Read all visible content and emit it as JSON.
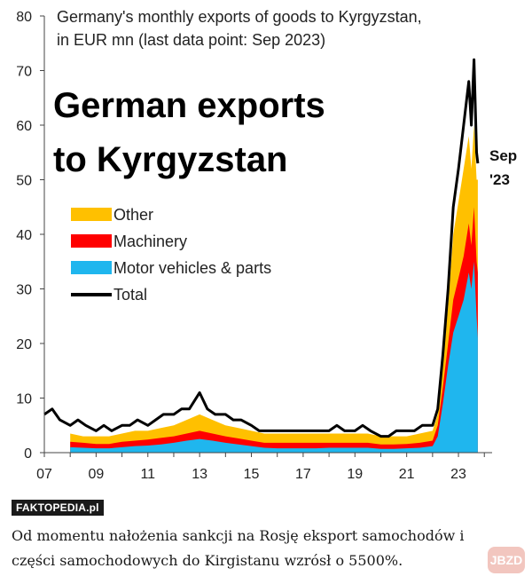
{
  "chart_data": {
    "type": "area",
    "subtitle_line1": "Germany's monthly exports of goods to Kyrgyzstan,",
    "subtitle_line2": "in EUR mn (last data point: Sep 2023)",
    "title_line1": "German exports",
    "title_line2": "to Kyrgyzstan",
    "annotation_line1": "Sep",
    "annotation_line2": "'23",
    "xlabel": "",
    "ylabel": "",
    "ylim": [
      0,
      80
    ],
    "xlim": [
      2007,
      2024.3
    ],
    "y_ticks": [
      "0",
      "10",
      "20",
      "30",
      "40",
      "50",
      "60",
      "70",
      "80"
    ],
    "x_ticks": [
      {
        "label": "07",
        "value": 2007
      },
      {
        "label": "09",
        "value": 2009
      },
      {
        "label": "11",
        "value": 2011
      },
      {
        "label": "13",
        "value": 2013
      },
      {
        "label": "15",
        "value": 2015
      },
      {
        "label": "17",
        "value": 2017
      },
      {
        "label": "19",
        "value": 2019
      },
      {
        "label": "21",
        "value": 2021
      },
      {
        "label": "23",
        "value": 2023
      }
    ],
    "legend": [
      {
        "label": "Other",
        "color": "#FFC000",
        "kind": "area"
      },
      {
        "label": "Machinery",
        "color": "#FF0000",
        "kind": "area"
      },
      {
        "label": "Motor vehicles & parts",
        "color": "#1FB6EE",
        "kind": "area"
      },
      {
        "label": "Total",
        "color": "#000000",
        "kind": "line"
      }
    ],
    "stacked_start": 2008,
    "series": [
      {
        "name": "Total",
        "points": [
          [
            2007.0,
            7
          ],
          [
            2007.3,
            8
          ],
          [
            2007.6,
            6
          ],
          [
            2008.0,
            5
          ],
          [
            2008.3,
            6
          ],
          [
            2008.6,
            5
          ],
          [
            2009.0,
            4
          ],
          [
            2009.3,
            5
          ],
          [
            2009.6,
            4
          ],
          [
            2010.0,
            5
          ],
          [
            2010.3,
            5
          ],
          [
            2010.6,
            6
          ],
          [
            2011.0,
            5
          ],
          [
            2011.3,
            6
          ],
          [
            2011.6,
            7
          ],
          [
            2012.0,
            7
          ],
          [
            2012.3,
            8
          ],
          [
            2012.6,
            8
          ],
          [
            2013.0,
            11
          ],
          [
            2013.3,
            8
          ],
          [
            2013.6,
            7
          ],
          [
            2014.0,
            7
          ],
          [
            2014.3,
            6
          ],
          [
            2014.6,
            6
          ],
          [
            2015.0,
            5
          ],
          [
            2015.3,
            4
          ],
          [
            2015.6,
            4
          ],
          [
            2016.0,
            4
          ],
          [
            2016.3,
            4
          ],
          [
            2016.6,
            4
          ],
          [
            2017.0,
            4
          ],
          [
            2017.3,
            4
          ],
          [
            2017.6,
            4
          ],
          [
            2018.0,
            4
          ],
          [
            2018.3,
            5
          ],
          [
            2018.6,
            4
          ],
          [
            2019.0,
            4
          ],
          [
            2019.3,
            5
          ],
          [
            2019.6,
            4
          ],
          [
            2020.0,
            3
          ],
          [
            2020.3,
            3
          ],
          [
            2020.6,
            4
          ],
          [
            2021.0,
            4
          ],
          [
            2021.3,
            4
          ],
          [
            2021.6,
            5
          ],
          [
            2022.0,
            5
          ],
          [
            2022.2,
            8
          ],
          [
            2022.4,
            18
          ],
          [
            2022.6,
            30
          ],
          [
            2022.8,
            45
          ],
          [
            2023.0,
            52
          ],
          [
            2023.2,
            60
          ],
          [
            2023.4,
            68
          ],
          [
            2023.5,
            60
          ],
          [
            2023.6,
            72
          ],
          [
            2023.7,
            55
          ],
          [
            2023.75,
            53
          ]
        ]
      },
      {
        "name": "Other",
        "points": [
          [
            2008.0,
            3.5
          ],
          [
            2008.5,
            3
          ],
          [
            2009.0,
            3
          ],
          [
            2009.5,
            3
          ],
          [
            2010.0,
            3.5
          ],
          [
            2010.5,
            4
          ],
          [
            2011.0,
            4
          ],
          [
            2011.5,
            4.5
          ],
          [
            2012.0,
            5
          ],
          [
            2012.5,
            6
          ],
          [
            2013.0,
            7
          ],
          [
            2013.5,
            6
          ],
          [
            2014.0,
            5
          ],
          [
            2014.5,
            4.5
          ],
          [
            2015.0,
            4
          ],
          [
            2015.5,
            3.5
          ],
          [
            2016.0,
            3.5
          ],
          [
            2016.5,
            3.5
          ],
          [
            2017.0,
            3.5
          ],
          [
            2017.5,
            3.5
          ],
          [
            2018.0,
            3.5
          ],
          [
            2018.5,
            3.5
          ],
          [
            2019.0,
            3.5
          ],
          [
            2019.5,
            3.5
          ],
          [
            2020.0,
            3
          ],
          [
            2020.5,
            3
          ],
          [
            2021.0,
            3
          ],
          [
            2021.5,
            3.5
          ],
          [
            2022.0,
            4
          ],
          [
            2022.2,
            7
          ],
          [
            2022.4,
            16
          ],
          [
            2022.6,
            27
          ],
          [
            2022.8,
            40
          ],
          [
            2023.0,
            46
          ],
          [
            2023.2,
            52
          ],
          [
            2023.4,
            58
          ],
          [
            2023.5,
            52
          ],
          [
            2023.6,
            60
          ],
          [
            2023.7,
            50
          ],
          [
            2023.75,
            50
          ]
        ]
      },
      {
        "name": "Machinery",
        "points": [
          [
            2008.0,
            2
          ],
          [
            2008.5,
            1.8
          ],
          [
            2009.0,
            1.6
          ],
          [
            2009.5,
            1.6
          ],
          [
            2010.0,
            2
          ],
          [
            2010.5,
            2.2
          ],
          [
            2011.0,
            2.4
          ],
          [
            2011.5,
            2.7
          ],
          [
            2012.0,
            3
          ],
          [
            2012.5,
            3.5
          ],
          [
            2013.0,
            4
          ],
          [
            2013.5,
            3.5
          ],
          [
            2014.0,
            3
          ],
          [
            2014.5,
            2.6
          ],
          [
            2015.0,
            2.2
          ],
          [
            2015.5,
            1.8
          ],
          [
            2016.0,
            1.8
          ],
          [
            2016.5,
            1.8
          ],
          [
            2017.0,
            1.8
          ],
          [
            2017.5,
            1.8
          ],
          [
            2018.0,
            1.8
          ],
          [
            2018.5,
            1.8
          ],
          [
            2019.0,
            1.8
          ],
          [
            2019.5,
            1.8
          ],
          [
            2020.0,
            1.5
          ],
          [
            2020.5,
            1.5
          ],
          [
            2021.0,
            1.6
          ],
          [
            2021.5,
            1.8
          ],
          [
            2022.0,
            2.2
          ],
          [
            2022.2,
            5
          ],
          [
            2022.4,
            12
          ],
          [
            2022.6,
            20
          ],
          [
            2022.8,
            28
          ],
          [
            2023.0,
            32
          ],
          [
            2023.2,
            36
          ],
          [
            2023.4,
            42
          ],
          [
            2023.5,
            38
          ],
          [
            2023.6,
            45
          ],
          [
            2023.7,
            35
          ],
          [
            2023.75,
            33
          ]
        ]
      },
      {
        "name": "Motor vehicles & parts",
        "points": [
          [
            2008.0,
            1
          ],
          [
            2008.5,
            0.9
          ],
          [
            2009.0,
            0.8
          ],
          [
            2009.5,
            0.8
          ],
          [
            2010.0,
            1
          ],
          [
            2010.5,
            1.2
          ],
          [
            2011.0,
            1.3
          ],
          [
            2011.5,
            1.5
          ],
          [
            2012.0,
            1.8
          ],
          [
            2012.5,
            2.2
          ],
          [
            2013.0,
            2.5
          ],
          [
            2013.5,
            2.2
          ],
          [
            2014.0,
            1.8
          ],
          [
            2014.5,
            1.5
          ],
          [
            2015.0,
            1.2
          ],
          [
            2015.5,
            0.9
          ],
          [
            2016.0,
            0.8
          ],
          [
            2016.5,
            0.8
          ],
          [
            2017.0,
            0.8
          ],
          [
            2017.5,
            0.8
          ],
          [
            2018.0,
            0.9
          ],
          [
            2018.5,
            0.9
          ],
          [
            2019.0,
            0.9
          ],
          [
            2019.5,
            0.9
          ],
          [
            2020.0,
            0.7
          ],
          [
            2020.5,
            0.7
          ],
          [
            2021.0,
            0.8
          ],
          [
            2021.5,
            0.9
          ],
          [
            2022.0,
            1.2
          ],
          [
            2022.2,
            3
          ],
          [
            2022.4,
            9
          ],
          [
            2022.6,
            16
          ],
          [
            2022.8,
            22
          ],
          [
            2023.0,
            25
          ],
          [
            2023.2,
            28
          ],
          [
            2023.4,
            33
          ],
          [
            2023.5,
            30
          ],
          [
            2023.6,
            35
          ],
          [
            2023.7,
            25
          ],
          [
            2023.75,
            21
          ]
        ]
      }
    ]
  },
  "source_badge": "FAKTOPEDIA.pl",
  "caption": "Od momentu nałożenia sankcji na Rosję eksport samochodów i części samochodowych do Kirgistanu wzrósł o 5500%.",
  "watermark": "JBZD"
}
